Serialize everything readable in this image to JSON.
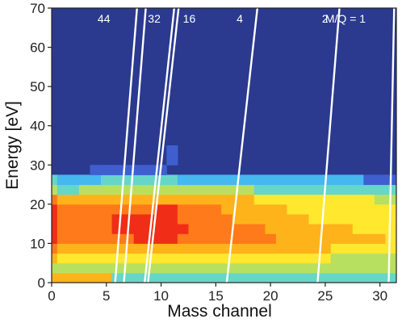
{
  "chart_data": {
    "type": "heatmap",
    "title": "",
    "xlabel": "Mass channel",
    "ylabel": "Energy [eV]",
    "xlim": [
      0,
      31.5
    ],
    "ylim": [
      0,
      70
    ],
    "x_ticks": [
      0,
      5,
      10,
      15,
      20,
      25,
      30
    ],
    "y_ticks": [
      0,
      10,
      20,
      30,
      40,
      50,
      60,
      70
    ],
    "grid": false,
    "cell_size": {
      "mass": 1,
      "energy": 2.5
    },
    "background_color": "#2b3a8f",
    "colormap": [
      "#2b3a8f",
      "#3f5fd0",
      "#45b8f0",
      "#66d6c8",
      "#b8e060",
      "#ffe82e",
      "#ffb31a",
      "#ff7a1a",
      "#f02d16"
    ],
    "columns": [
      {
        "mass": 0,
        "levels": [
          6,
          7,
          8,
          8,
          8,
          8,
          7,
          4,
          3
        ]
      },
      {
        "mass": 1,
        "levels": [
          5,
          6,
          7,
          7,
          7,
          7,
          6,
          3,
          2
        ]
      },
      {
        "mass": 2,
        "levels": [
          5,
          6,
          7,
          7,
          7,
          7,
          6,
          3,
          2
        ]
      },
      {
        "mass": 3,
        "levels": [
          5,
          6,
          7,
          7,
          7,
          7,
          6,
          4,
          2
        ]
      },
      {
        "mass": 4,
        "levels": [
          5,
          6,
          7,
          7,
          7,
          7,
          6,
          4,
          2,
          1
        ]
      },
      {
        "mass": 5,
        "levels": [
          5,
          6,
          7,
          7,
          7,
          7,
          6,
          4,
          3,
          1
        ]
      },
      {
        "mass": 6,
        "levels": [
          5,
          6,
          7,
          8,
          8,
          7,
          6,
          4,
          3,
          1
        ]
      },
      {
        "mass": 7,
        "levels": [
          5,
          6,
          7,
          8,
          8,
          7,
          6,
          4,
          3,
          1
        ]
      },
      {
        "mass": 8,
        "levels": [
          5,
          6,
          8,
          8,
          8,
          7,
          6,
          4,
          3,
          1
        ]
      },
      {
        "mass": 9,
        "levels": [
          5,
          6,
          8,
          8,
          8,
          7,
          6,
          4,
          3,
          1
        ]
      },
      {
        "mass": 10,
        "levels": [
          5,
          6,
          8,
          8,
          8,
          8,
          6,
          4,
          3,
          1
        ]
      },
      {
        "mass": 11,
        "levels": [
          5,
          6,
          8,
          8,
          8,
          8,
          6,
          4,
          3
        ]
      },
      {
        "mass": 12,
        "levels": [
          5,
          6,
          7,
          8,
          7,
          7,
          6,
          4,
          2
        ]
      },
      {
        "mass": 13,
        "levels": [
          5,
          6,
          7,
          7,
          7,
          7,
          6,
          4,
          2
        ]
      },
      {
        "mass": 14,
        "levels": [
          5,
          6,
          7,
          7,
          7,
          7,
          6,
          4,
          2
        ]
      },
      {
        "mass": 15,
        "levels": [
          5,
          6,
          7,
          7,
          7,
          7,
          6,
          4,
          2
        ]
      },
      {
        "mass": 16,
        "levels": [
          5,
          6,
          7,
          7,
          7,
          6,
          6,
          4,
          2
        ]
      },
      {
        "mass": 17,
        "levels": [
          5,
          6,
          7,
          7,
          6,
          6,
          6,
          4,
          2
        ]
      },
      {
        "mass": 18,
        "levels": [
          5,
          6,
          7,
          7,
          6,
          6,
          6,
          4,
          2
        ]
      },
      {
        "mass": 19,
        "levels": [
          5,
          6,
          7,
          7,
          6,
          6,
          5,
          3,
          2
        ]
      },
      {
        "mass": 20,
        "levels": [
          5,
          6,
          7,
          6,
          6,
          6,
          5,
          3,
          2
        ]
      },
      {
        "mass": 21,
        "levels": [
          5,
          6,
          6,
          6,
          6,
          6,
          5,
          3,
          2
        ]
      },
      {
        "mass": 22,
        "levels": [
          5,
          6,
          6,
          6,
          6,
          5,
          5,
          3,
          2
        ]
      },
      {
        "mass": 23,
        "levels": [
          5,
          6,
          6,
          6,
          6,
          5,
          5,
          3,
          2
        ]
      },
      {
        "mass": 24,
        "levels": [
          5,
          6,
          6,
          6,
          5,
          5,
          5,
          3,
          2
        ]
      },
      {
        "mass": 25,
        "levels": [
          5,
          6,
          6,
          6,
          5,
          5,
          5,
          3,
          2
        ]
      },
      {
        "mass": 26,
        "levels": [
          4,
          5,
          6,
          6,
          5,
          5,
          5,
          3,
          2
        ]
      },
      {
        "mass": 27,
        "levels": [
          4,
          5,
          6,
          6,
          5,
          5,
          5,
          3,
          2
        ]
      },
      {
        "mass": 28,
        "levels": [
          4,
          5,
          6,
          5,
          5,
          5,
          5,
          3,
          2
        ]
      },
      {
        "mass": 29,
        "levels": [
          4,
          5,
          6,
          5,
          5,
          5,
          5,
          3,
          1
        ]
      },
      {
        "mass": 30,
        "levels": [
          4,
          5,
          6,
          5,
          5,
          5,
          4,
          3,
          1
        ]
      },
      {
        "mass": 31,
        "levels": [
          4,
          5,
          5,
          5,
          5,
          5,
          4,
          3,
          1
        ]
      }
    ],
    "low_band_levels": [
      3,
      4,
      3
    ],
    "isolated_cells": [
      {
        "mass": 11,
        "energy": 30,
        "level": 1
      },
      {
        "mass": 11,
        "energy": 32.5,
        "level": 1
      }
    ],
    "mass_per_charge_lines": [
      {
        "label": "44",
        "energy0_mass": 5.8,
        "energy70_mass": 7.8
      },
      {
        "label": "",
        "energy0_mass": 6.6,
        "energy70_mass": 8.6
      },
      {
        "label": "32",
        "energy0_mass": 8.5,
        "energy70_mass": 11.2
      },
      {
        "label": "16",
        "energy0_mass": 8.8,
        "energy70_mass": 11.6
      },
      {
        "label": "4",
        "energy0_mass": 16.0,
        "energy70_mass": 18.8
      },
      {
        "label": "2",
        "energy0_mass": 24.3,
        "energy70_mass": 26.3
      },
      {
        "label": "M/Q = 1",
        "energy0_mass": 30.8,
        "energy70_mass": 31.3
      }
    ]
  }
}
